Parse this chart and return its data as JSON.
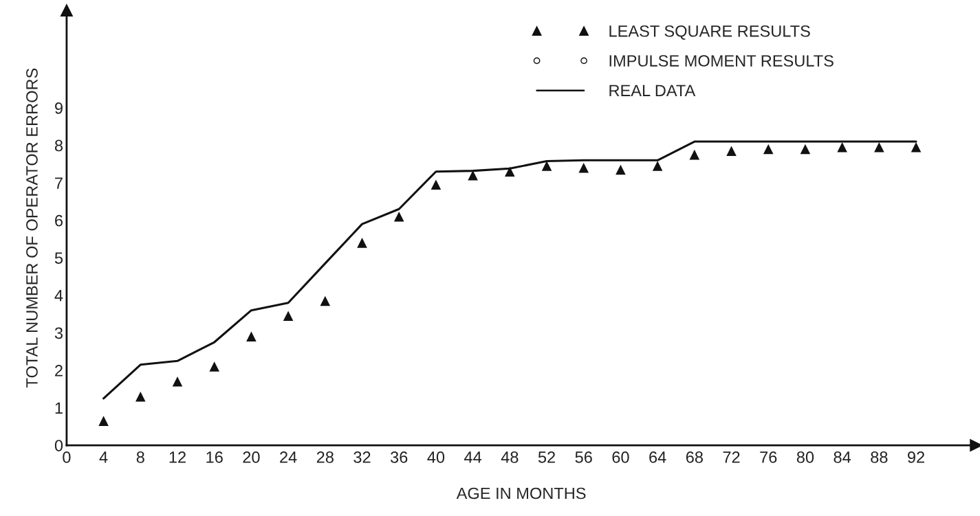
{
  "chart_data": {
    "type": "line",
    "xlabel": "AGE IN MONTHS",
    "ylabel": "TOTAL NUMBER OF OPERATOR ERRORS",
    "x": [
      4,
      8,
      12,
      16,
      20,
      24,
      28,
      32,
      36,
      40,
      44,
      48,
      52,
      56,
      60,
      64,
      68,
      72,
      76,
      80,
      84,
      88,
      92
    ],
    "series": [
      {
        "name": "LEAST SQUARE RESULTS",
        "type": "scatter",
        "marker": "triangle",
        "color": "#111111",
        "values": [
          0.65,
          1.3,
          1.7,
          2.1,
          2.9,
          3.45,
          3.85,
          5.4,
          6.1,
          6.95,
          7.2,
          7.3,
          7.45,
          7.4,
          7.35,
          7.45,
          7.75,
          7.85,
          7.9,
          7.9,
          7.95,
          7.95,
          7.95
        ]
      },
      {
        "name": "IMPULSE MOMENT RESULTS",
        "type": "scatter",
        "marker": "circle",
        "color": "#111111",
        "values": [
          null,
          null,
          null,
          null,
          null,
          null,
          null,
          null,
          null,
          null,
          null,
          null,
          null,
          null,
          null,
          null,
          null,
          null,
          null,
          null,
          null,
          null,
          null
        ]
      },
      {
        "name": "REAL DATA",
        "marker": "none",
        "line_style": "solid",
        "color": "#111111",
        "values": [
          1.25,
          2.15,
          2.25,
          2.75,
          3.6,
          3.8,
          4.85,
          5.9,
          6.3,
          7.3,
          7.32,
          7.38,
          7.58,
          7.6,
          7.6,
          7.6,
          8.1,
          8.1,
          8.1,
          8.1,
          8.1,
          8.1,
          8.1
        ]
      }
    ],
    "xlim": [
      0,
      98.5
    ],
    "ylim": [
      0,
      11.6
    ],
    "xticks": [
      0,
      4,
      8,
      12,
      16,
      20,
      24,
      28,
      32,
      36,
      40,
      44,
      48,
      52,
      56,
      60,
      64,
      68,
      72,
      76,
      80,
      84,
      88,
      92
    ],
    "yticks": [
      0,
      1,
      2,
      3,
      4,
      5,
      6,
      7,
      8,
      9
    ],
    "grid": false,
    "legend": "top right"
  }
}
